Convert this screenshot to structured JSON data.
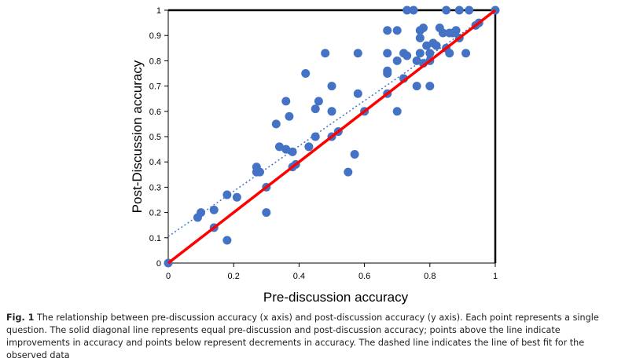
{
  "chart_data": {
    "type": "scatter",
    "xlabel": "Pre-discussion accuracy",
    "ylabel": "Post-Discussion accuracy",
    "xlim": [
      0,
      1
    ],
    "ylim": [
      0,
      1
    ],
    "xticks": [
      "0",
      "0.2",
      "0.4",
      "0.6",
      "0.8",
      "1"
    ],
    "yticks": [
      "0",
      "0.1",
      "0.2",
      "0.3",
      "0.4",
      "0.5",
      "0.6",
      "0.7",
      "0.8",
      "0.9",
      "1"
    ],
    "xtick_values": [
      0,
      0.2,
      0.4,
      0.6,
      0.8,
      1
    ],
    "ytick_values": [
      0,
      0.1,
      0.2,
      0.3,
      0.4,
      0.5,
      0.6,
      0.7,
      0.8,
      0.9,
      1
    ],
    "grid": false,
    "marker_color": "#4472C4",
    "identity_line": {
      "color": "#FF0000",
      "from": [
        0,
        0
      ],
      "to": [
        1,
        1
      ]
    },
    "fit_line": {
      "color": "#4472C4",
      "style": "dotted",
      "intercept": 0.105,
      "slope": 0.895
    },
    "points": [
      [
        0,
        0
      ],
      [
        0.09,
        0.18
      ],
      [
        0.1,
        0.2
      ],
      [
        0.14,
        0.14
      ],
      [
        0.14,
        0.21
      ],
      [
        0.18,
        0.09
      ],
      [
        0.18,
        0.27
      ],
      [
        0.21,
        0.26
      ],
      [
        0.27,
        0.38
      ],
      [
        0.27,
        0.36
      ],
      [
        0.28,
        0.36
      ],
      [
        0.3,
        0.2
      ],
      [
        0.3,
        0.3
      ],
      [
        0.33,
        0.55
      ],
      [
        0.34,
        0.46
      ],
      [
        0.36,
        0.45
      ],
      [
        0.36,
        0.64
      ],
      [
        0.37,
        0.58
      ],
      [
        0.38,
        0.38
      ],
      [
        0.38,
        0.44
      ],
      [
        0.39,
        0.39
      ],
      [
        0.42,
        0.75
      ],
      [
        0.43,
        0.46
      ],
      [
        0.45,
        0.5
      ],
      [
        0.45,
        0.61
      ],
      [
        0.46,
        0.64
      ],
      [
        0.48,
        0.83
      ],
      [
        0.5,
        0.5
      ],
      [
        0.5,
        0.6
      ],
      [
        0.5,
        0.7
      ],
      [
        0.52,
        0.52
      ],
      [
        0.55,
        0.36
      ],
      [
        0.57,
        0.43
      ],
      [
        0.58,
        0.67
      ],
      [
        0.58,
        0.83
      ],
      [
        0.6,
        0.6
      ],
      [
        0.67,
        0.67
      ],
      [
        0.67,
        0.75
      ],
      [
        0.67,
        0.76
      ],
      [
        0.67,
        0.83
      ],
      [
        0.67,
        0.92
      ],
      [
        0.7,
        0.6
      ],
      [
        0.7,
        0.8
      ],
      [
        0.7,
        0.92
      ],
      [
        0.72,
        0.73
      ],
      [
        0.72,
        0.83
      ],
      [
        0.73,
        0.82
      ],
      [
        0.73,
        1
      ],
      [
        0.75,
        1
      ],
      [
        0.76,
        0.7
      ],
      [
        0.76,
        0.8
      ],
      [
        0.77,
        0.83
      ],
      [
        0.77,
        0.89
      ],
      [
        0.77,
        0.92
      ],
      [
        0.78,
        0.93
      ],
      [
        0.78,
        0.79
      ],
      [
        0.79,
        0.86
      ],
      [
        0.8,
        0.7
      ],
      [
        0.8,
        0.8
      ],
      [
        0.8,
        0.83
      ],
      [
        0.81,
        0.87
      ],
      [
        0.82,
        0.86
      ],
      [
        0.83,
        0.93
      ],
      [
        0.84,
        0.91
      ],
      [
        0.85,
        0.85
      ],
      [
        0.85,
        1
      ],
      [
        0.86,
        0.83
      ],
      [
        0.86,
        0.91
      ],
      [
        0.87,
        0.91
      ],
      [
        0.88,
        0.92
      ],
      [
        0.89,
        0.89
      ],
      [
        0.89,
        1
      ],
      [
        0.91,
        0.83
      ],
      [
        0.92,
        1
      ],
      [
        0.94,
        0.94
      ],
      [
        0.95,
        0.95
      ],
      [
        1,
        1
      ]
    ]
  },
  "caption": {
    "label": "Fig. 1",
    "text": " The relationship between pre-discussion accuracy (x axis) and post-discussion accuracy (y axis). Each point represents a single question. The solid diagonal line represents equal pre-discussion and post-discussion accuracy; points above the line indicate improvements in accuracy and points below represent decrements in accuracy. The dashed line indicates the line of best fit for the observed data"
  }
}
